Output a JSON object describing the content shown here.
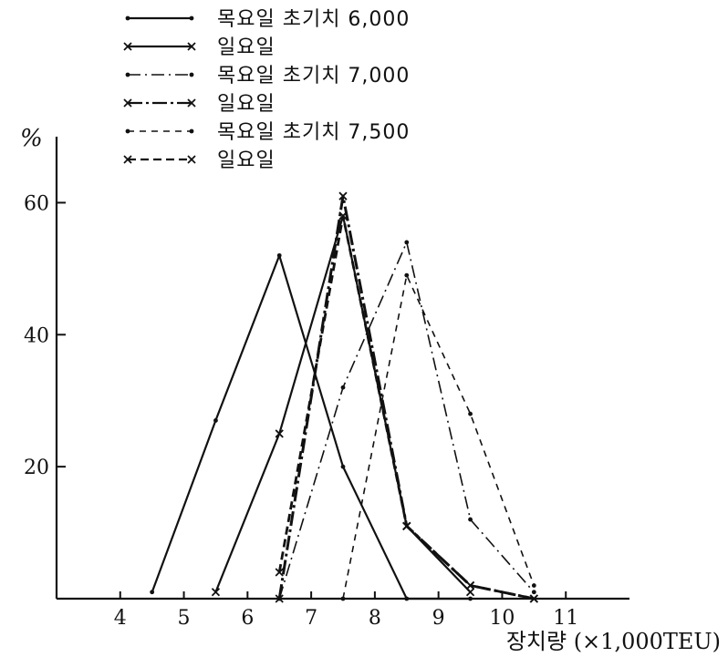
{
  "chart_data": {
    "type": "line",
    "ylabel": "%",
    "xlabel": "장치량 (×1,000TEU)",
    "xlim": [
      3,
      12
    ],
    "ylim": [
      0,
      70
    ],
    "x_ticks": [
      4,
      5,
      6,
      7,
      8,
      9,
      10,
      11
    ],
    "y_ticks": [
      20,
      40,
      60
    ],
    "legend_position": "top-left",
    "series": [
      {
        "name": "목요일 초기치 6,000",
        "style": "solid",
        "marker": "dot",
        "x": [
          4.5,
          5.5,
          6.5,
          7.5,
          8.5,
          9.5
        ],
        "y": [
          1,
          27,
          52,
          20,
          0,
          0
        ]
      },
      {
        "name": "일요일",
        "style": "solid",
        "marker": "x",
        "x": [
          5.5,
          6.5,
          7.5,
          8.5,
          9.5
        ],
        "y": [
          1,
          25,
          58,
          11,
          1
        ]
      },
      {
        "name": "목요일 초기치 7,000",
        "style": "dashdot",
        "marker": "dot",
        "x": [
          6.5,
          7.5,
          8.5,
          9.5,
          10.5
        ],
        "y": [
          0,
          32,
          54,
          12,
          1
        ]
      },
      {
        "name": "일요일",
        "style": "dashdot-bold",
        "marker": "x",
        "x": [
          6.5,
          7.5,
          8.5,
          9.5,
          10.5
        ],
        "y": [
          0,
          61,
          11,
          2,
          0
        ]
      },
      {
        "name": "목요일 초기치 7,500",
        "style": "dashed",
        "marker": "dot",
        "x": [
          7.5,
          8.5,
          9.5,
          10.5
        ],
        "y": [
          0,
          49,
          28,
          2
        ]
      },
      {
        "name": "일요일",
        "style": "dashed-bold",
        "marker": "x",
        "x": [
          6.5,
          7.5,
          8.5,
          9.5,
          10.5
        ],
        "y": [
          4,
          58,
          11,
          2,
          0
        ]
      }
    ]
  }
}
